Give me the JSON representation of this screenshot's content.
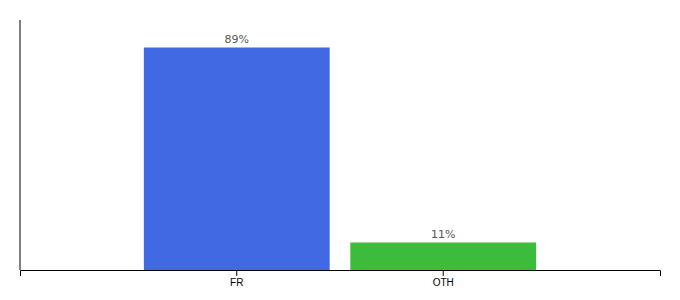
{
  "chart_data": {
    "type": "bar",
    "categories": [
      "FR",
      "OTH"
    ],
    "values": [
      89,
      11
    ],
    "value_labels": [
      "89%",
      "11%"
    ],
    "colors": [
      "#4169e1",
      "#3dbb3d"
    ],
    "ylim": [
      0,
      100
    ],
    "data_labels": true,
    "tick_labels": "x"
  }
}
